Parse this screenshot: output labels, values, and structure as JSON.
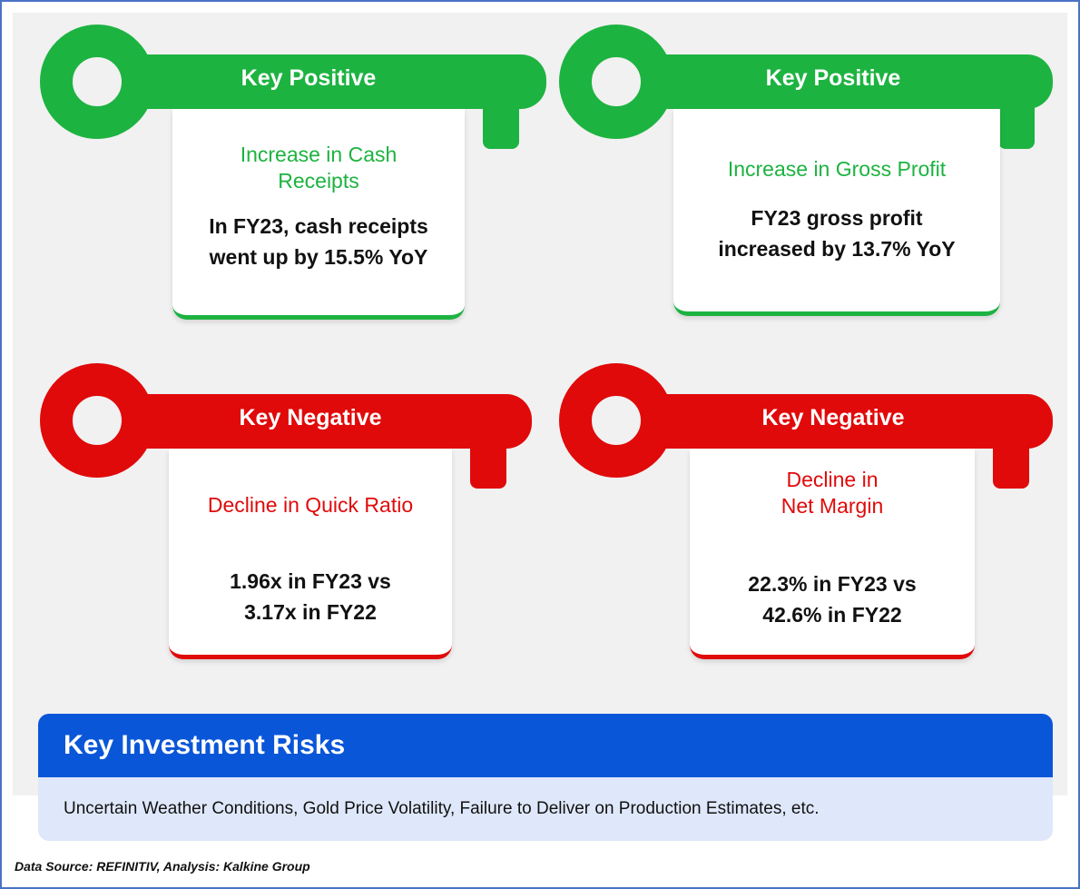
{
  "colors": {
    "positive": "#1db341",
    "negative": "#e00a0a",
    "accent_blue": "#0a56d8"
  },
  "cards": [
    {
      "type": "positive",
      "key_label": "Key Positive",
      "title_lines": [
        "Increase in Cash",
        "Receipts"
      ],
      "text_lines": [
        "In FY23, cash receipts",
        "went up by 15.5% YoY"
      ]
    },
    {
      "type": "positive",
      "key_label": "Key Positive",
      "title_lines": [
        "Increase in Gross Profit"
      ],
      "text_lines": [
        "FY23 gross profit",
        "increased by 13.7% YoY"
      ]
    },
    {
      "type": "negative",
      "key_label": "Key Negative",
      "title_lines": [
        "Decline in Quick Ratio"
      ],
      "text_lines": [
        "1.96x in FY23 vs",
        "3.17x in FY22"
      ]
    },
    {
      "type": "negative",
      "key_label": "Key Negative",
      "title_lines": [
        "Decline in",
        "Net Margin"
      ],
      "text_lines": [
        "22.3% in FY23 vs",
        "42.6% in FY22"
      ]
    }
  ],
  "risks": {
    "heading": "Key Investment Risks",
    "text": "Uncertain Weather Conditions, Gold Price Volatility, Failure to Deliver on Production Estimates, etc."
  },
  "source": "Data Source: REFINITIV, Analysis: Kalkine Group"
}
